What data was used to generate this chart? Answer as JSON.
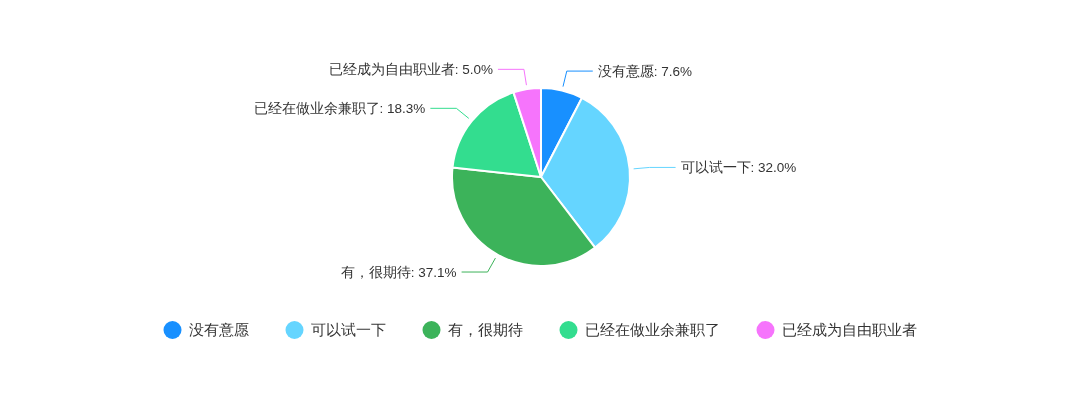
{
  "chart_data": {
    "type": "pie",
    "categories": [
      "没有意愿",
      "可以试一下",
      "有，很期待",
      "已经在做业余兼职了",
      "已经成为自由职业者"
    ],
    "values": [
      7.6,
      32.0,
      37.1,
      18.3,
      5.0
    ],
    "value_labels": [
      ": 7.6%",
      ": 32.0%",
      ": 37.1%",
      ": 18.3%",
      ": 5.0%"
    ],
    "colors": [
      "#1890ff",
      "#65d5ff",
      "#3cb35a",
      "#33dd8f",
      "#f674fc"
    ],
    "legend": "bottom"
  }
}
